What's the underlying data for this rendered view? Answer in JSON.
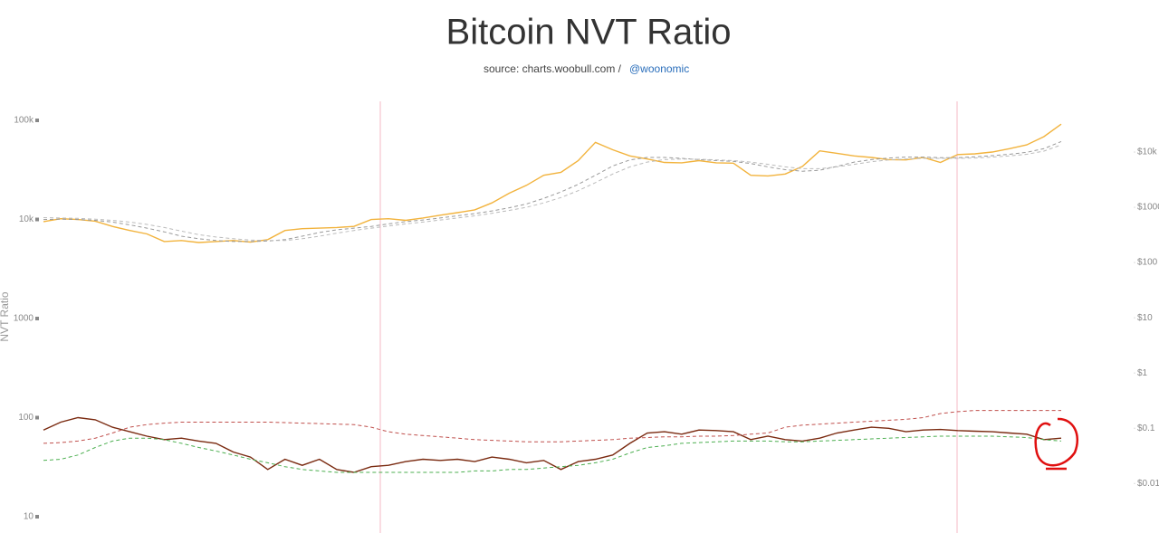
{
  "chart_data": {
    "type": "line",
    "title": "Bitcoin NVT Ratio",
    "subtitle": "source: charts.woobull.com /",
    "subtitle_link": "@woonomic",
    "y_label": "NVT Ratio",
    "log_scale": true,
    "y2_log_scale": true,
    "categories": [
      null,
      null,
      null,
      null,
      null,
      null,
      null,
      null,
      null,
      null,
      null,
      null,
      null,
      null,
      null,
      null,
      null,
      null,
      null,
      null,
      null,
      null,
      null,
      null,
      null,
      null,
      null,
      null,
      null,
      null,
      null,
      null,
      null,
      null,
      null,
      null,
      null,
      null,
      null,
      null,
      null,
      null,
      null,
      null,
      null,
      null,
      null,
      null,
      null,
      null,
      null,
      null,
      null,
      null,
      null,
      null,
      null,
      null,
      null,
      null
    ],
    "ylim": [
      10,
      100000
    ],
    "yticks": [
      {
        "value": 100000,
        "label": "100k"
      },
      {
        "value": 10000,
        "label": "10k"
      },
      1000,
      100,
      10
    ],
    "y2lim": [
      0.0025,
      37500
    ],
    "y2ticks": [
      {
        "value": 10000,
        "label": "$10k"
      },
      {
        "value": 1000,
        "label": "$1000"
      },
      {
        "value": 100,
        "label": "$100"
      },
      {
        "value": 10,
        "label": "$10"
      },
      {
        "value": 1,
        "label": "$1"
      },
      {
        "value": 0.1,
        "label": "$0.1"
      },
      {
        "value": 0.01,
        "label": "$0.01"
      }
    ],
    "series": [
      {
        "color": "#f2b33d",
        "axis": "y2",
        "dashed": false,
        "values": [
          550,
          620,
          600,
          560,
          450,
          380,
          330,
          240,
          250,
          230,
          240,
          250,
          235,
          260,
          380,
          410,
          420,
          430,
          450,
          600,
          620,
          580,
          640,
          720,
          800,
          900,
          1200,
          1800,
          2500,
          3800,
          4300,
          7000,
          15000,
          11000,
          8500,
          7500,
          6500,
          6400,
          7000,
          6400,
          6300,
          3800,
          3700,
          4000,
          5500,
          10500,
          9500,
          8500,
          8000,
          7300,
          7200,
          8000,
          6500,
          9000,
          9300,
          10000,
          11500,
          13500,
          19000,
          32000
        ]
      },
      {
        "color": "#999999",
        "axis": "y2",
        "dashed": true,
        "values": [
          600,
          610,
          600,
          580,
          540,
          480,
          420,
          360,
          300,
          270,
          250,
          240,
          240,
          245,
          260,
          300,
          350,
          390,
          420,
          450,
          500,
          550,
          590,
          640,
          700,
          770,
          860,
          980,
          1150,
          1450,
          1900,
          2600,
          3800,
          5600,
          7200,
          8000,
          8000,
          7700,
          7300,
          7000,
          6800,
          6200,
          5400,
          4800,
          4500,
          4700,
          5500,
          6600,
          7300,
          7800,
          8100,
          8100,
          7900,
          7900,
          8200,
          8600,
          9100,
          9900,
          11500,
          15500
        ]
      },
      {
        "color": "#bbbbbb",
        "axis": "y2",
        "dashed": true,
        "values": [
          650,
          640,
          630,
          610,
          580,
          540,
          490,
          430,
          370,
          320,
          290,
          270,
          255,
          250,
          250,
          270,
          300,
          340,
          380,
          420,
          460,
          500,
          540,
          590,
          640,
          700,
          780,
          880,
          1000,
          1200,
          1500,
          2000,
          2800,
          4000,
          5400,
          6600,
          7300,
          7500,
          7400,
          7200,
          7000,
          6600,
          6000,
          5400,
          5000,
          5000,
          5400,
          6000,
          6700,
          7200,
          7500,
          7700,
          7700,
          7700,
          7800,
          8100,
          8500,
          9100,
          10400,
          13500
        ]
      },
      {
        "color": "#7a2a10",
        "axis": "y",
        "dashed": false,
        "values": [
          75,
          90,
          100,
          95,
          80,
          72,
          65,
          60,
          62,
          58,
          55,
          45,
          40,
          30,
          38,
          33,
          38,
          30,
          28,
          32,
          33,
          36,
          38,
          37,
          38,
          36,
          40,
          38,
          35,
          37,
          30,
          36,
          38,
          42,
          55,
          70,
          72,
          68,
          75,
          74,
          72,
          60,
          65,
          60,
          58,
          62,
          70,
          75,
          80,
          78,
          72,
          75,
          76,
          74,
          73,
          72,
          70,
          68,
          60,
          62
        ]
      },
      {
        "color": "#c0504d",
        "axis": "y",
        "dashed": true,
        "values": [
          55,
          56,
          58,
          62,
          70,
          80,
          85,
          88,
          90,
          90,
          90,
          90,
          90,
          90,
          89,
          88,
          87,
          86,
          85,
          80,
          72,
          68,
          66,
          64,
          62,
          60,
          59,
          58,
          57,
          57,
          57,
          58,
          59,
          60,
          62,
          63,
          64,
          64,
          65,
          65,
          66,
          68,
          70,
          80,
          84,
          86,
          88,
          90,
          92,
          94,
          96,
          100,
          110,
          115,
          118,
          118,
          118,
          118,
          118,
          118
        ]
      },
      {
        "color": "#4caf50",
        "axis": "y",
        "dashed": true,
        "values": [
          37,
          38,
          42,
          50,
          58,
          62,
          62,
          60,
          55,
          50,
          46,
          42,
          38,
          35,
          32,
          30,
          29,
          28,
          28,
          28,
          28,
          28,
          28,
          28,
          28,
          29,
          29,
          30,
          30,
          31,
          32,
          33,
          35,
          38,
          44,
          50,
          52,
          55,
          56,
          57,
          58,
          58,
          58,
          57,
          57,
          58,
          59,
          60,
          61,
          62,
          63,
          64,
          65,
          65,
          65,
          65,
          64,
          63,
          60,
          58
        ]
      }
    ]
  }
}
